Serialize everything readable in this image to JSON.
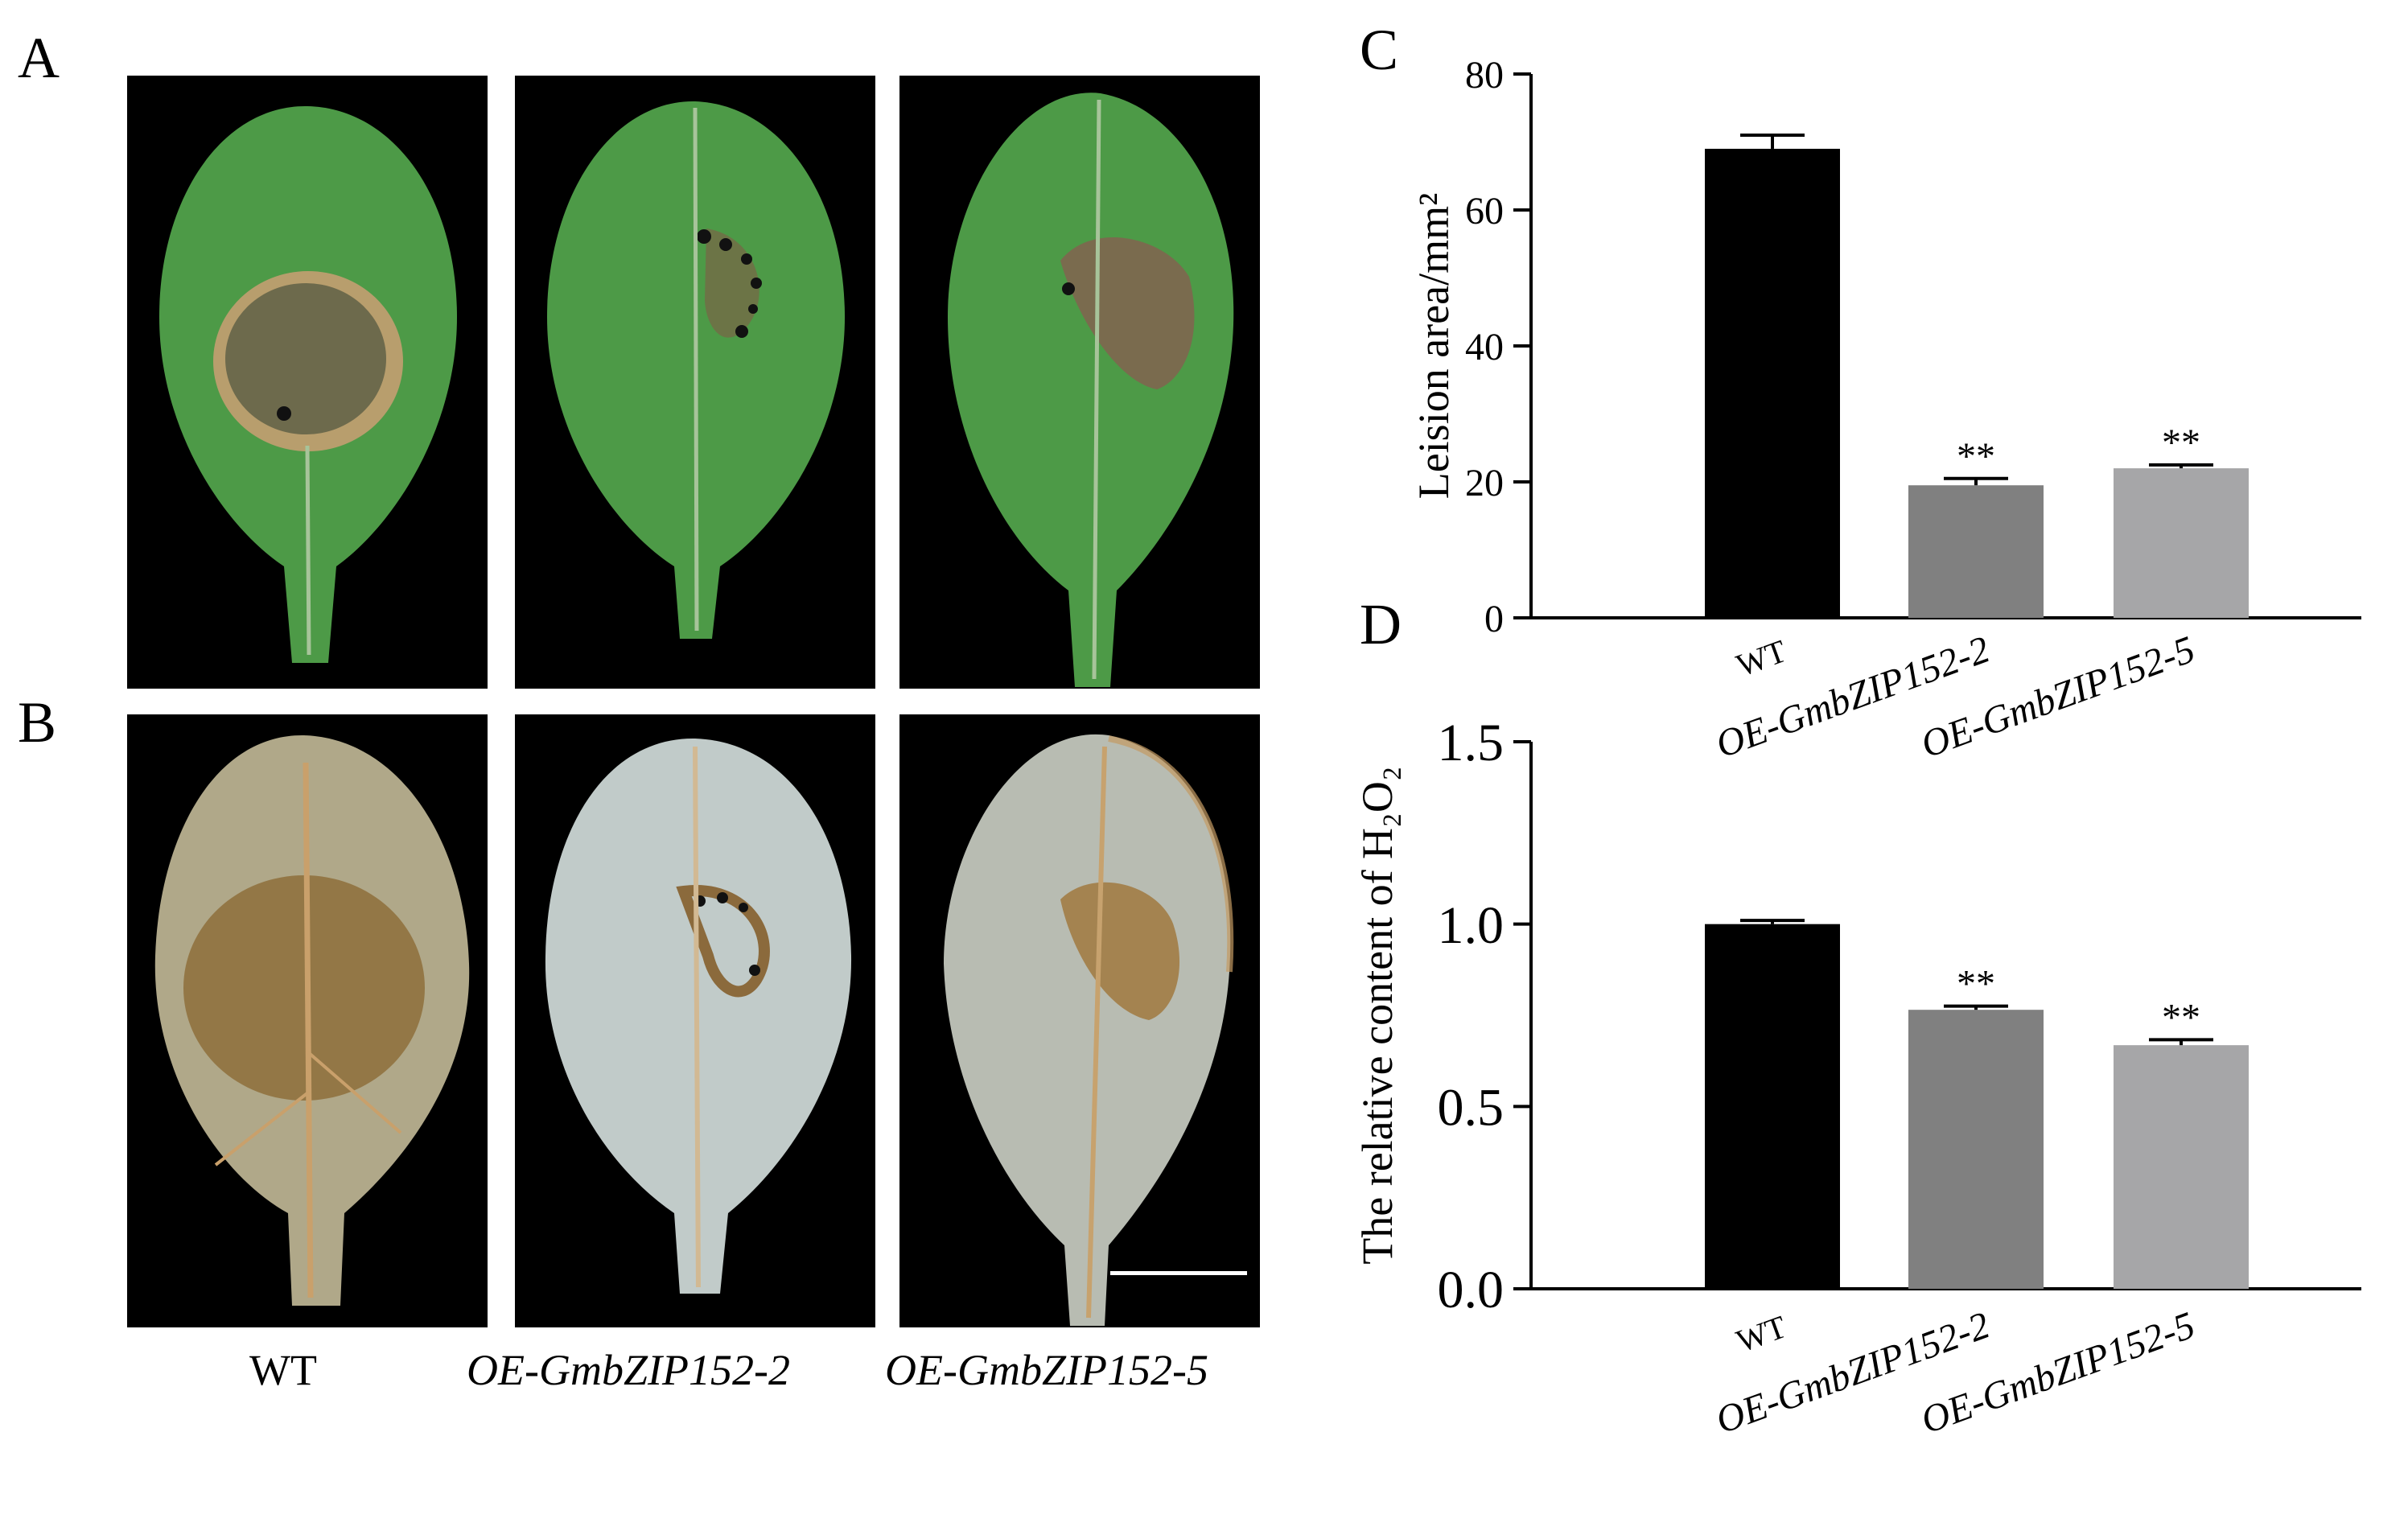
{
  "panels": {
    "a_label": "A",
    "b_label": "B",
    "c_label": "C",
    "d_label": "D"
  },
  "photo_columns": [
    {
      "name": "WT",
      "italic": false
    },
    {
      "name": "OE-GmbZIP152-2",
      "italic": true
    },
    {
      "name": "OE-GmbZIP152-5",
      "italic": true
    }
  ],
  "colors": {
    "wt_bar": "#000000",
    "line2_bar": "#808080",
    "line5_bar": "#a6a6a8",
    "leaf_green": "#4d9a47",
    "stained_leaf": "#b9c3c4"
  },
  "chart_data": [
    {
      "id": "C",
      "type": "bar",
      "ylabel": "Leision area/mm²",
      "categories": [
        "WT",
        "OE-GmbZIP152-2",
        "OE-GmbZIP152-5"
      ],
      "values": [
        69,
        19.5,
        22
      ],
      "errors": [
        2,
        1,
        0.5
      ],
      "significance": [
        "",
        "**",
        "**"
      ],
      "ylim": [
        0,
        80
      ],
      "yticks": [
        "0",
        "20",
        "40",
        "60",
        "80"
      ]
    },
    {
      "id": "D",
      "type": "bar",
      "ylabel": "The relative content of H₂O₂",
      "categories": [
        "WT",
        "OE-GmbZIP152-2",
        "OE-GmbZIP152-5"
      ],
      "values": [
        1.0,
        0.765,
        0.668
      ],
      "errors": [
        0.01,
        0.01,
        0.015
      ],
      "significance": [
        "",
        "**",
        "**"
      ],
      "ylim": [
        0,
        1.5
      ],
      "yticks": [
        "0.0",
        "0.5",
        "1.0",
        "1.5"
      ]
    }
  ]
}
